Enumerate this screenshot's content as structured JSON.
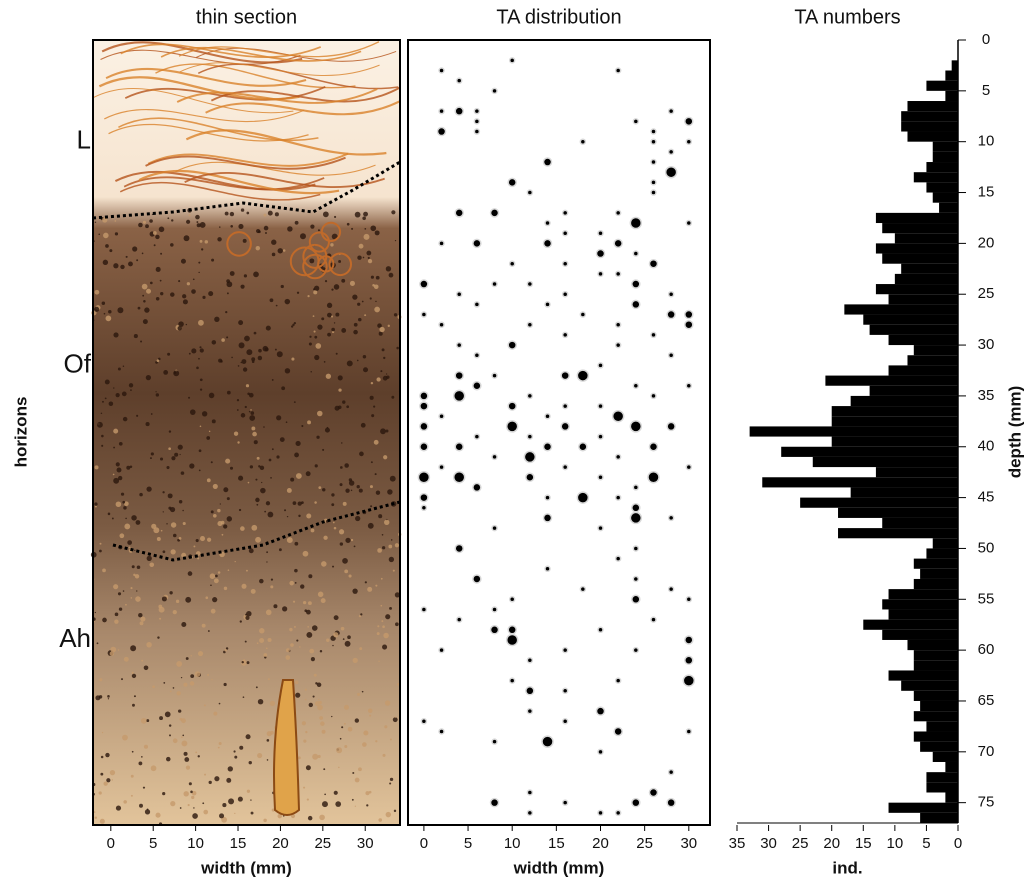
{
  "chart_data": [
    {
      "type": "image",
      "title": "thin section",
      "xlabel": "width (mm)",
      "ylabel": "horizons",
      "xlim": [
        -2.1,
        34.1
      ],
      "xticks": [
        0,
        5,
        10,
        15,
        20,
        25,
        30
      ],
      "ylim": [
        0,
        77
      ],
      "horizons": [
        {
          "label": "L",
          "depth": 10
        },
        {
          "label": "Of",
          "depth": 32
        },
        {
          "label": "Ah",
          "depth": 59
        }
      ]
    },
    {
      "type": "scatter",
      "title": "TA distribution",
      "xlabel": "width (mm)",
      "xlim": [
        -1.8,
        32.4
      ],
      "xticks": [
        0,
        5,
        10,
        15,
        20,
        25,
        30
      ],
      "ylim": [
        0,
        77
      ],
      "color": "#000000",
      "x": [
        10,
        2,
        22,
        4,
        8,
        4,
        2,
        6,
        28,
        30,
        24,
        6,
        2,
        6,
        26,
        18,
        26,
        30,
        28,
        14,
        26,
        28,
        10,
        26,
        12,
        26,
        4,
        8,
        16,
        22,
        24,
        14,
        30,
        16,
        20,
        6,
        14,
        22,
        2,
        20,
        24,
        26,
        10,
        16,
        20,
        22,
        0,
        8,
        24,
        12,
        4,
        16,
        28,
        24,
        6,
        14,
        30,
        28,
        0,
        18,
        2,
        12,
        30,
        22,
        16,
        26,
        10,
        4,
        22,
        6,
        28,
        20,
        16,
        18,
        8,
        4,
        6,
        24,
        30,
        4,
        0,
        12,
        26,
        0,
        10,
        16,
        20,
        22,
        2,
        14,
        10,
        24,
        0,
        16,
        28,
        6,
        12,
        20,
        0,
        4,
        14,
        18,
        26,
        12,
        8,
        22,
        2,
        16,
        30,
        0,
        4,
        12,
        26,
        20,
        6,
        24,
        18,
        0,
        14,
        22,
        24,
        0,
        24,
        14,
        28,
        8,
        20,
        4,
        24,
        22,
        14,
        6,
        24,
        18,
        28,
        10,
        24,
        30,
        0,
        8,
        4,
        26,
        8,
        10,
        20,
        10,
        30,
        2,
        16,
        24,
        30,
        12,
        30,
        22,
        10,
        12,
        16,
        20,
        12,
        0,
        16,
        2,
        22,
        30,
        14,
        8,
        20,
        28,
        26,
        12,
        8,
        24,
        28,
        16,
        20,
        12,
        22
      ],
      "y": [
        2,
        3,
        3,
        4,
        5,
        7,
        7,
        7,
        7,
        8,
        8,
        8,
        9,
        9,
        9,
        10,
        10,
        10,
        11,
        12,
        12,
        13,
        14,
        14,
        15,
        15,
        17,
        17,
        17,
        17,
        18,
        18,
        18,
        19,
        19,
        20,
        20,
        20,
        20,
        21,
        21,
        22,
        22,
        22,
        23,
        23,
        24,
        24,
        24,
        24,
        25,
        25,
        25,
        26,
        26,
        26,
        27,
        27,
        27,
        27,
        28,
        28,
        28,
        28,
        29,
        29,
        30,
        30,
        30,
        31,
        31,
        32,
        33,
        33,
        33,
        33,
        34,
        34,
        34,
        35,
        35,
        35,
        35,
        36,
        36,
        36,
        36,
        37,
        37,
        37,
        38,
        38,
        38,
        38,
        38,
        39,
        39,
        39,
        40,
        40,
        40,
        40,
        40,
        41,
        41,
        41,
        42,
        42,
        42,
        43,
        43,
        43,
        43,
        43,
        44,
        44,
        45,
        45,
        45,
        45,
        46,
        46,
        47,
        47,
        47,
        48,
        48,
        50,
        50,
        51,
        52,
        53,
        53,
        54,
        54,
        55,
        55,
        55,
        56,
        56,
        57,
        57,
        58,
        58,
        58,
        59,
        59,
        60,
        60,
        60,
        61,
        61,
        63,
        63,
        63,
        64,
        64,
        66,
        66,
        67,
        67,
        68,
        68,
        68,
        69,
        69,
        70,
        72,
        74,
        74,
        75,
        75,
        75,
        75,
        76,
        76,
        76
      ],
      "sizes": [
        1,
        1,
        1,
        1,
        1,
        2,
        1,
        1,
        1,
        2,
        1,
        1,
        2,
        1,
        1,
        1,
        1,
        1,
        1,
        2,
        1,
        3,
        2,
        1,
        1,
        1,
        2,
        2,
        1,
        1,
        3,
        1,
        1,
        1,
        1,
        2,
        2,
        2,
        1,
        2,
        1,
        2,
        1,
        1,
        1,
        1,
        2,
        1,
        2,
        1,
        1,
        1,
        1,
        2,
        1,
        1,
        2,
        2,
        1,
        1,
        1,
        1,
        2,
        1,
        1,
        1,
        2,
        1,
        1,
        1,
        1,
        1,
        2,
        3,
        1,
        2,
        2,
        1,
        1,
        3,
        2,
        1,
        1,
        2,
        2,
        1,
        1,
        3,
        1,
        1,
        3,
        3,
        2,
        2,
        2,
        1,
        1,
        1,
        2,
        2,
        2,
        2,
        2,
        3,
        1,
        1,
        1,
        1,
        1,
        3,
        3,
        2,
        3,
        1,
        2,
        1,
        3,
        2,
        1,
        1,
        2,
        1,
        3,
        2,
        1,
        1,
        1,
        2,
        1,
        1,
        1,
        2,
        1,
        1,
        1,
        1,
        2,
        1,
        1,
        1,
        1,
        1,
        2,
        2,
        1,
        3,
        2,
        1,
        1,
        1,
        2,
        1,
        3,
        1,
        1,
        2,
        1,
        2,
        1,
        1,
        1,
        1,
        2,
        1,
        3,
        1,
        1,
        1,
        2,
        1,
        2,
        2,
        2,
        1,
        1,
        1,
        1
      ]
    },
    {
      "type": "histogram",
      "title": "TA numbers",
      "xlabel": "ind.",
      "ylabel": "depth (mm)",
      "color": "#000000",
      "xlim": [
        35,
        0
      ],
      "xticks": [
        35,
        30,
        25,
        20,
        15,
        10,
        5,
        0
      ],
      "ylim": [
        0,
        77
      ],
      "yticks": [
        0,
        5,
        10,
        15,
        20,
        25,
        30,
        35,
        40,
        45,
        50,
        55,
        60,
        65,
        70,
        75
      ],
      "bins": [
        0,
        1,
        2,
        3,
        4,
        5,
        6,
        7,
        8,
        9,
        10,
        11,
        12,
        13,
        14,
        15,
        16,
        17,
        18,
        19,
        20,
        21,
        22,
        23,
        24,
        25,
        26,
        27,
        28,
        29,
        30,
        31,
        32,
        33,
        34,
        35,
        36,
        37,
        38,
        39,
        40,
        41,
        42,
        43,
        44,
        45,
        46,
        47,
        48,
        49,
        50,
        51,
        52,
        53,
        54,
        55,
        56,
        57,
        58,
        59,
        60,
        61,
        62,
        63,
        64,
        65,
        66,
        67,
        68,
        69,
        70,
        71,
        72,
        73,
        74,
        75,
        76,
        77
      ],
      "values": [
        0,
        0,
        1,
        2,
        5,
        2,
        8,
        9,
        9,
        8,
        4,
        4,
        5,
        7,
        5,
        4,
        3,
        13,
        12,
        10,
        13,
        12,
        9,
        10,
        13,
        11,
        18,
        15,
        14,
        11,
        7,
        8,
        11,
        21,
        14,
        17,
        20,
        20,
        33,
        20,
        28,
        23,
        13,
        31,
        17,
        25,
        19,
        12,
        19,
        4,
        5,
        7,
        6,
        7,
        11,
        12,
        11,
        15,
        12,
        8,
        7,
        7,
        11,
        9,
        7,
        6,
        7,
        5,
        7,
        6,
        4,
        2,
        5,
        5,
        2,
        11,
        6
      ]
    }
  ]
}
